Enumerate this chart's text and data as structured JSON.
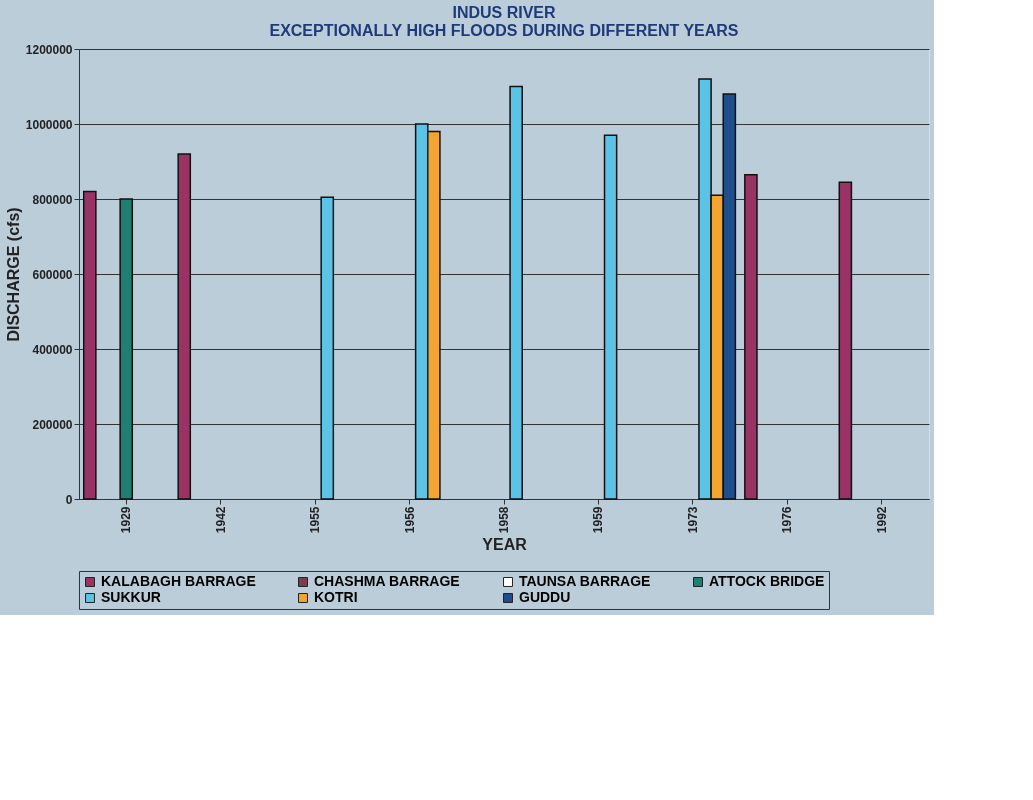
{
  "chart_data": {
    "type": "bar",
    "title": "INDUS RIVER\nEXCEPTIONALLY HIGH FLOODS DURING DIFFERENT YEARS",
    "xlabel": "YEAR",
    "ylabel": "DISCHARGE (cfs)",
    "categories": [
      "1929",
      "1942",
      "1955",
      "1956",
      "1958",
      "1959",
      "1973",
      "1976",
      "1992"
    ],
    "series": [
      {
        "name": "KALABAGH BARRAGE",
        "color": "#993366",
        "values": [
          820000,
          920000,
          null,
          null,
          null,
          null,
          null,
          865000,
          845000
        ]
      },
      {
        "name": "CHASHMA BARRAGE",
        "color": "#7a3f4f",
        "values": [
          null,
          null,
          null,
          null,
          null,
          null,
          null,
          null,
          null
        ]
      },
      {
        "name": "TAUNSA BARRAGE",
        "color": "#ffffff",
        "values": [
          null,
          null,
          null,
          null,
          null,
          null,
          null,
          null,
          null
        ]
      },
      {
        "name": "ATTOCK BRIDGE",
        "color": "#1f7f73",
        "values": [
          800000,
          null,
          null,
          null,
          null,
          null,
          null,
          null,
          null
        ]
      },
      {
        "name": "SUKKUR",
        "color": "#5bc3e6",
        "values": [
          null,
          null,
          805000,
          1000000,
          1100000,
          970000,
          1120000,
          null,
          null
        ]
      },
      {
        "name": "KOTRI",
        "color": "#f2a530",
        "values": [
          null,
          null,
          null,
          980000,
          null,
          null,
          810000,
          null,
          null
        ]
      },
      {
        "name": "GUDDU",
        "color": "#1f4e8c",
        "values": [
          null,
          null,
          null,
          null,
          null,
          null,
          1080000,
          null,
          null
        ]
      }
    ],
    "ylim": [
      0,
      1200000
    ],
    "yticks": [
      0,
      200000,
      400000,
      600000,
      800000,
      1000000,
      1200000
    ],
    "grid": "y",
    "legend": "bottom"
  }
}
